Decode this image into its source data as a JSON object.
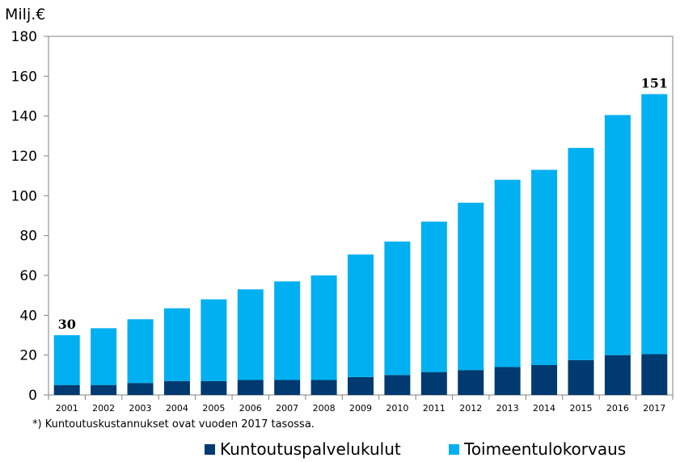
{
  "chart_data": {
    "type": "bar",
    "stacked": true,
    "unit_label": "Milj.€",
    "categories": [
      "2001",
      "2002",
      "2003",
      "2004",
      "2005",
      "2006",
      "2007",
      "2008",
      "2009",
      "2010",
      "2011",
      "2012",
      "2013",
      "2014",
      "2015",
      "2016",
      "2017"
    ],
    "series": [
      {
        "name": "Kuntoutuspalvelukulut",
        "color": "#003A70",
        "values": [
          5,
          5,
          6,
          7,
          7,
          7.5,
          7.5,
          7.5,
          9,
          10,
          11.5,
          12.5,
          14,
          15,
          17.5,
          20,
          20.5
        ]
      },
      {
        "name": "Toimeentulokorvaus",
        "color": "#00B0F0",
        "values": [
          25,
          28.5,
          32,
          36.5,
          41,
          45.5,
          49.5,
          52.5,
          61.5,
          67,
          75.5,
          84,
          94,
          98,
          106.5,
          120.5,
          130.5
        ]
      }
    ],
    "ylim": [
      0,
      180
    ],
    "yticks": [
      0,
      20,
      40,
      60,
      80,
      100,
      120,
      140,
      160,
      180
    ],
    "data_labels": [
      {
        "category": "2001",
        "text": "30"
      },
      {
        "category": "2017",
        "text": "151"
      }
    ],
    "grid": false,
    "legend_position": "bottom",
    "footnote": "*) Kuntoutuskustannukset ovat vuoden 2017 tasossa."
  }
}
